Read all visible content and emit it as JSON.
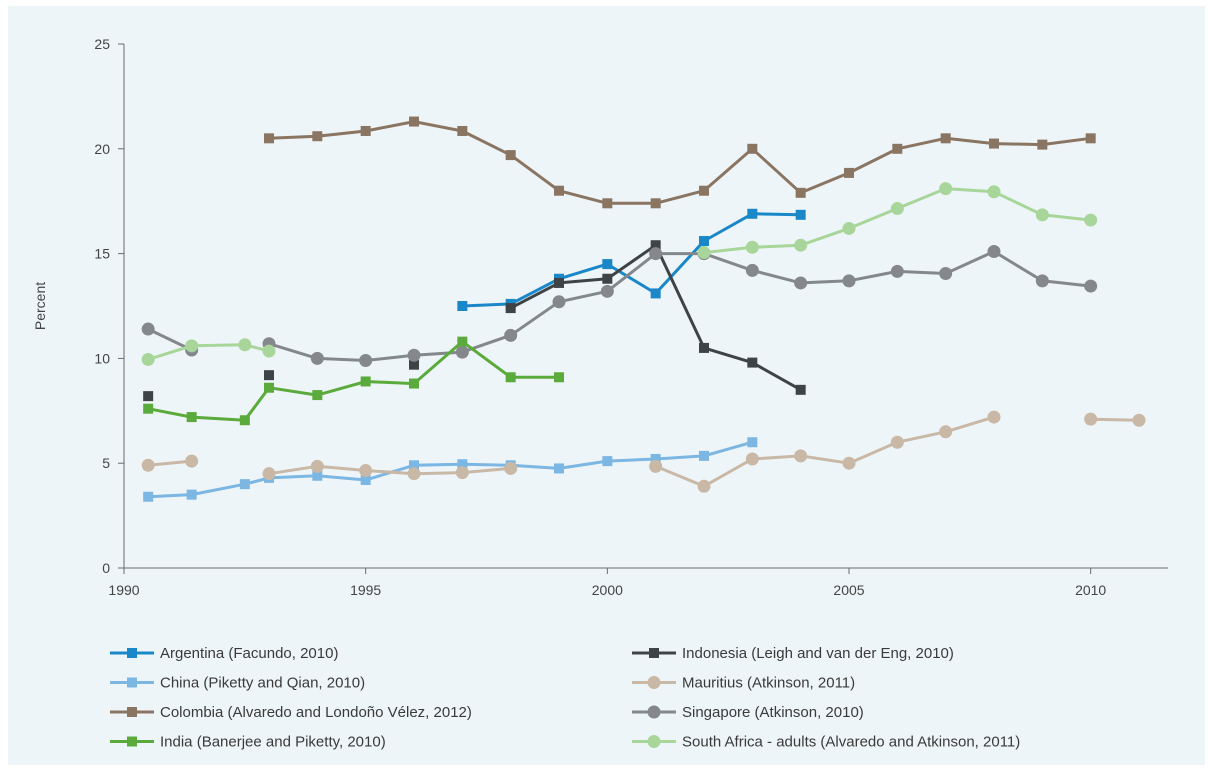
{
  "chart_data": {
    "type": "line",
    "ylabel": "Percent",
    "xlim": [
      1990,
      2011.6
    ],
    "ylim": [
      0,
      25
    ],
    "x_ticks": [
      "1990",
      "1995",
      "2000",
      "2005",
      "2010"
    ],
    "y_ticks": [
      "0",
      "5",
      "10",
      "15",
      "20",
      "25"
    ],
    "grid": false,
    "legend_position": "bottom",
    "series": [
      {
        "name": "Argentina (Facundo, 2010)",
        "color": "#1a87c9",
        "marker": "square",
        "points": [
          [
            1997,
            12.5
          ],
          [
            1998,
            12.6
          ],
          [
            1999,
            13.8
          ],
          [
            2000,
            14.5
          ],
          [
            2001,
            13.1
          ],
          [
            2002,
            15.6
          ],
          [
            2003,
            16.9
          ],
          [
            2004,
            16.85
          ]
        ]
      },
      {
        "name": "Indonesia (Leigh and van der Eng, 2010)",
        "color": "#3e4346",
        "marker": "square",
        "points": [
          [
            1990.5,
            8.2
          ],
          null,
          [
            1993,
            9.2
          ],
          null,
          [
            1996,
            9.7
          ],
          null,
          [
            1998,
            12.4
          ],
          [
            1999,
            13.6
          ],
          [
            2000,
            13.8
          ],
          [
            2001,
            15.4
          ],
          [
            2002,
            10.5
          ],
          [
            2003,
            9.8
          ],
          [
            2004,
            8.5
          ]
        ]
      },
      {
        "name": "China (Piketty and Qian, 2010)",
        "color": "#7cb6e2",
        "marker": "square",
        "points": [
          [
            1990.5,
            3.4
          ],
          [
            1991.4,
            3.5
          ],
          [
            1992.5,
            4.0
          ],
          [
            1993,
            4.3
          ],
          [
            1994,
            4.4
          ],
          [
            1995,
            4.2
          ],
          [
            1996,
            4.9
          ],
          [
            1997,
            4.95
          ],
          [
            1998,
            4.9
          ],
          [
            1999,
            4.75
          ],
          [
            2000,
            5.1
          ],
          [
            2001,
            5.2
          ],
          [
            2002,
            5.35
          ],
          [
            2003,
            6.0
          ]
        ]
      },
      {
        "name": "Mauritius (Atkinson, 2011)",
        "color": "#c9b8a6",
        "marker": "circle",
        "points": [
          [
            1990.5,
            4.9
          ],
          [
            1991.4,
            5.1
          ],
          null,
          [
            1993,
            4.5
          ],
          [
            1994,
            4.85
          ],
          [
            1995,
            4.65
          ],
          [
            1996,
            4.5
          ],
          [
            1997,
            4.55
          ],
          [
            1998,
            4.75
          ],
          null,
          [
            2001,
            4.85
          ],
          [
            2002,
            3.9
          ],
          [
            2003,
            5.2
          ],
          [
            2004,
            5.35
          ],
          [
            2005,
            5.0
          ],
          [
            2006,
            6.0
          ],
          [
            2007,
            6.5
          ],
          [
            2008,
            7.2
          ],
          null,
          [
            2010,
            7.1
          ],
          [
            2011,
            7.05
          ]
        ]
      },
      {
        "name": "Colombia (Alvaredo and Londoño Vélez, 2012)",
        "color": "#8a7462",
        "marker": "square",
        "points": [
          [
            1993,
            20.5
          ],
          [
            1994,
            20.6
          ],
          [
            1995,
            20.85
          ],
          [
            1996,
            21.3
          ],
          [
            1997,
            20.85
          ],
          [
            1998,
            19.7
          ],
          [
            1999,
            18.0
          ],
          [
            2000,
            17.4
          ],
          [
            2001,
            17.4
          ],
          [
            2002,
            18.0
          ],
          [
            2003,
            20.0
          ],
          [
            2004,
            17.9
          ],
          [
            2005,
            18.85
          ],
          [
            2006,
            20.0
          ],
          [
            2007,
            20.5
          ],
          [
            2008,
            20.25
          ],
          [
            2009,
            20.2
          ],
          [
            2010,
            20.5
          ]
        ]
      },
      {
        "name": "Singapore (Atkinson, 2010)",
        "color": "#84888c",
        "marker": "circle",
        "points": [
          [
            1990.5,
            11.4
          ],
          [
            1991.4,
            10.4
          ],
          null,
          [
            1993,
            10.7
          ],
          [
            1994,
            10.0
          ],
          [
            1995,
            9.9
          ],
          [
            1996,
            10.15
          ],
          [
            1997,
            10.3
          ],
          [
            1998,
            11.1
          ],
          [
            1999,
            12.7
          ],
          [
            2000,
            13.2
          ],
          [
            2001,
            15.0
          ],
          [
            2002,
            15.0
          ],
          [
            2003,
            14.2
          ],
          [
            2004,
            13.6
          ],
          [
            2005,
            13.7
          ],
          [
            2006,
            14.15
          ],
          [
            2007,
            14.05
          ],
          [
            2008,
            15.1
          ],
          [
            2009,
            13.7
          ],
          [
            2010,
            13.45
          ]
        ]
      },
      {
        "name": "India (Banerjee and Piketty, 2010)",
        "color": "#5aaa3c",
        "marker": "square",
        "points": [
          [
            1990.5,
            7.6
          ],
          [
            1991.4,
            7.2
          ],
          [
            1992.5,
            7.05
          ],
          [
            1993,
            8.6
          ],
          [
            1994,
            8.25
          ],
          [
            1995,
            8.9
          ],
          [
            1996,
            8.8
          ],
          [
            1997,
            10.8
          ],
          [
            1998,
            9.1
          ],
          [
            1999,
            9.1
          ]
        ]
      },
      {
        "name": "South Africa - adults (Alvaredo and Atkinson, 2011)",
        "color": "#a8d69a",
        "marker": "circle",
        "points": [
          [
            1990.5,
            9.95
          ],
          [
            1991.4,
            10.6
          ],
          [
            1992.5,
            10.65
          ],
          [
            1993,
            10.35
          ],
          null,
          [
            2002,
            15.05
          ],
          [
            2003,
            15.3
          ],
          [
            2004,
            15.4
          ],
          [
            2005,
            16.2
          ],
          [
            2006,
            17.15
          ],
          [
            2007,
            18.1
          ],
          [
            2008,
            17.95
          ],
          [
            2009,
            16.85
          ],
          [
            2010,
            16.6
          ]
        ]
      }
    ]
  }
}
